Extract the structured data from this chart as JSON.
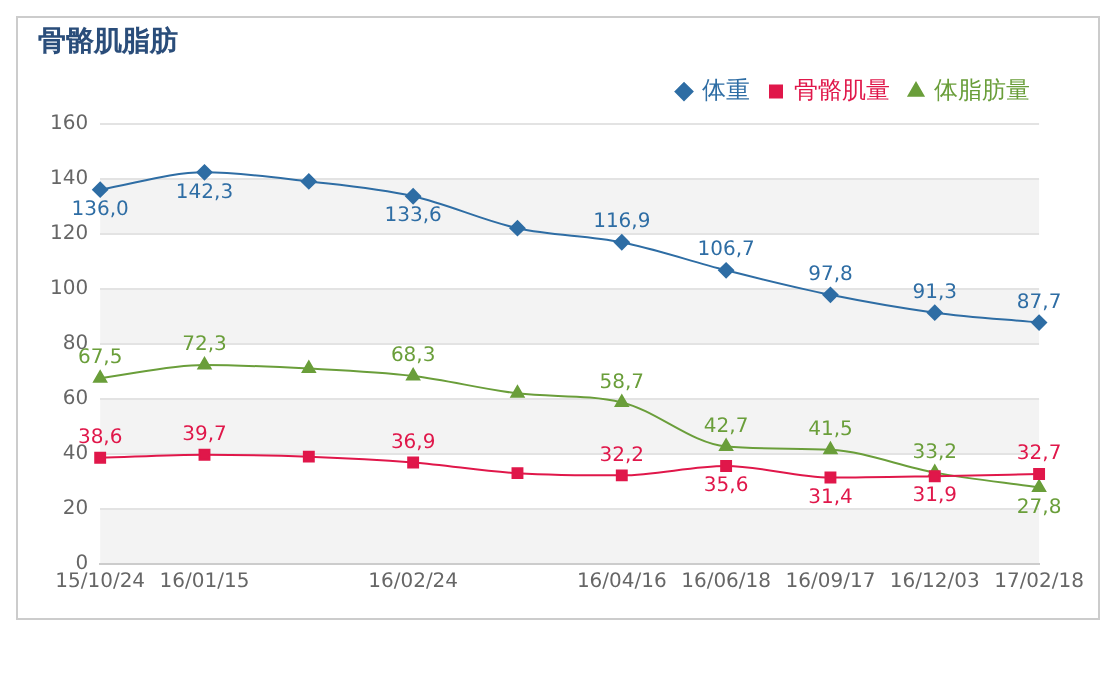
{
  "chart_data": {
    "type": "line",
    "title": "骨骼肌脂肪",
    "categories": [
      "15/10/24",
      "16/01/15",
      null,
      "16/02/24",
      null,
      "16/04/16",
      "16/06/18",
      "16/09/17",
      "16/12/03",
      "17/02/18"
    ],
    "series": [
      {
        "name": "体重",
        "color": "#2e6da4",
        "marker": "diamond",
        "values": [
          136.0,
          142.3,
          139,
          133.6,
          122,
          116.9,
          106.7,
          97.8,
          91.3,
          87.7
        ],
        "value_labels": [
          "136,0",
          "142,3",
          null,
          "133,6",
          null,
          "116,9",
          "106,7",
          "97,8",
          "91,3",
          "87,7"
        ]
      },
      {
        "name": "骨骼肌量",
        "color": "#e0174a",
        "marker": "square",
        "values": [
          38.6,
          39.7,
          39,
          36.9,
          33,
          32.2,
          35.6,
          31.4,
          31.9,
          32.7
        ],
        "value_labels": [
          "38,6",
          "39,7",
          null,
          "36,9",
          null,
          "32,2",
          "35,6",
          "31,4",
          "31,9",
          "32,7"
        ]
      },
      {
        "name": "体脂肪量",
        "color": "#6a9e3a",
        "marker": "triangle",
        "values": [
          67.5,
          72.3,
          71,
          68.3,
          62,
          58.7,
          42.7,
          41.5,
          33.2,
          27.8
        ],
        "value_labels": [
          "67,5",
          "72,3",
          null,
          "68,3",
          null,
          "58,7",
          "42,7",
          "41,5",
          "33,2",
          "27,8"
        ]
      }
    ],
    "ylim": [
      0,
      160
    ],
    "yticks": [
      0,
      20,
      40,
      60,
      80,
      100,
      120,
      140,
      160
    ],
    "grid": "y",
    "legend": "top right",
    "line_style": "solid"
  }
}
